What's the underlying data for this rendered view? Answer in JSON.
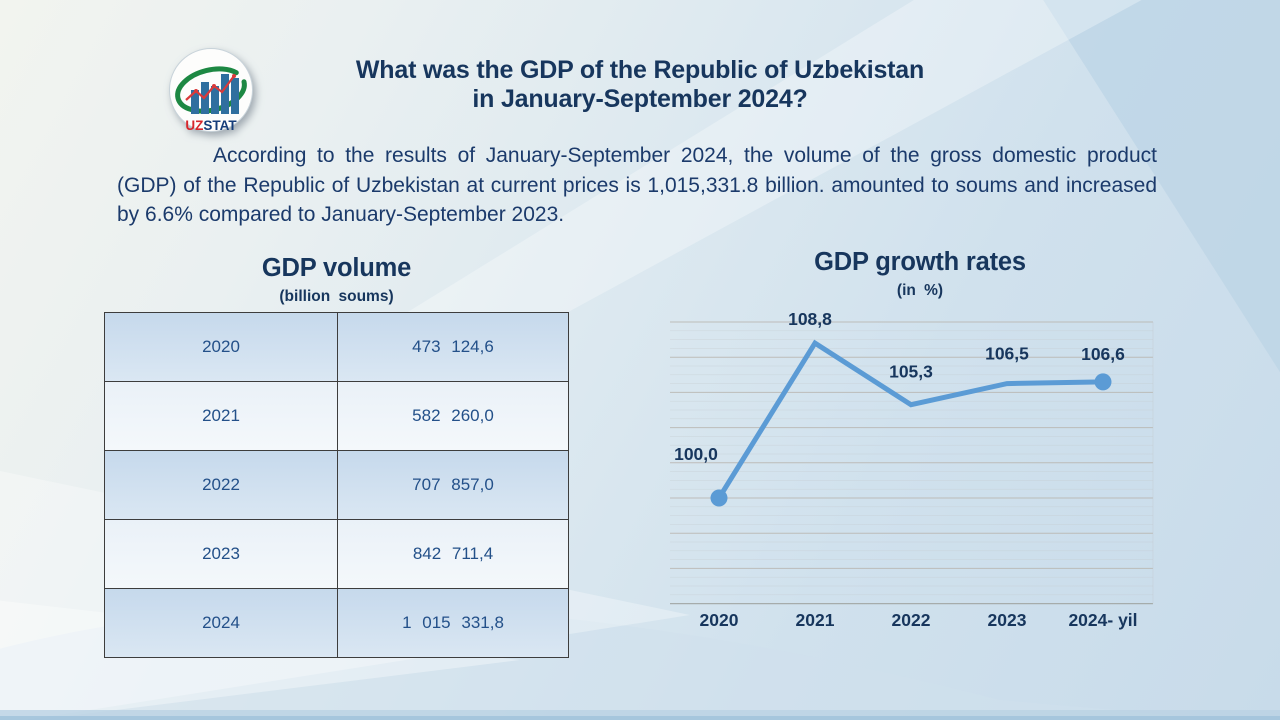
{
  "header": {
    "title_line1": "What was the GDP of the Republic of Uzbekistan",
    "title_line2": "in January-September 2024?"
  },
  "logo": {
    "uz": "UZ",
    "stat": "STAT"
  },
  "intro": {
    "text": "According to the results of January-September 2024, the volume of the gross domestic product (GDP) of the Republic of Uzbekistan at current prices is 1,015,331.8 billion. amounted to soums and increased by 6.6% compared to January-September 2023."
  },
  "gdp_table": {
    "title": "GDP volume",
    "subtitle": "(billion soums)",
    "rows": [
      {
        "year": "2020",
        "value": "473 124,6"
      },
      {
        "year": "2021",
        "value": "582 260,0"
      },
      {
        "year": "2022",
        "value": "707 857,0"
      },
      {
        "year": "2023",
        "value": "842 711,4"
      },
      {
        "year": "2024",
        "value": "1 015 331,8"
      }
    ]
  },
  "growth_chart": {
    "title": "GDP growth rates",
    "subtitle": "(in %)"
  },
  "chart_data": {
    "type": "line",
    "title": "GDP growth rates",
    "subtitle": "(in %)",
    "categories": [
      "2020",
      "2021",
      "2022",
      "2023",
      "2024- yil"
    ],
    "values": [
      100.0,
      108.8,
      105.3,
      106.5,
      106.6
    ],
    "point_labels": [
      "100,0",
      "108,8",
      "105,3",
      "106,5",
      "106,6"
    ],
    "ylim": [
      94,
      110
    ],
    "grid": {
      "orientation": "horizontal",
      "major_step": 2,
      "minor_step": 0.5
    },
    "legend": "none",
    "markers": "first and last points only",
    "line_color": "#5b9bd5",
    "label_color": "#17365d"
  },
  "colors": {
    "heading_navy": "#17365d",
    "body_text": "#1b3a6b",
    "table_text": "#235089",
    "row_blue": "#cfdfee",
    "row_light": "#eef4f9",
    "line_blue": "#5b9bd5",
    "logo_green": "#1d8843",
    "logo_red": "#d7262c",
    "logo_bar_blue": "#2f6f9f"
  }
}
